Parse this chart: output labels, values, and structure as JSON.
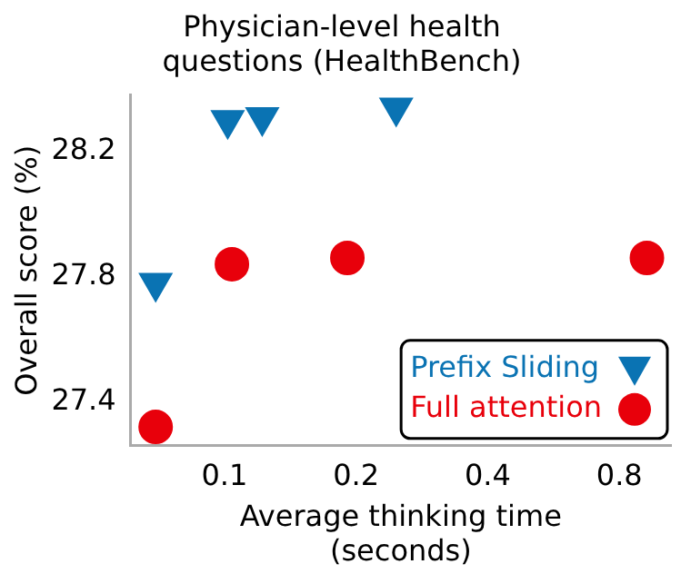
{
  "chart_data": {
    "type": "scatter",
    "title": "Physician-level health\nquestions (HealthBench)",
    "xlabel": "Average thinking time\n(seconds)",
    "ylabel": "Overall score (%)",
    "log": "x",
    "xlim": [
      0.061,
      1.05
    ],
    "xticks": [
      0.1,
      0.2,
      0.4,
      0.8
    ],
    "ylim": [
      27.26,
      28.38
    ],
    "yticks": [
      27.4,
      27.8,
      28.2
    ],
    "grid": false,
    "legend": "bottom right",
    "series": [
      {
        "name": "Prefix Sliding",
        "color": "#0a73b3",
        "marker": "triangle",
        "x": [
          0.0696,
          0.1017,
          0.122,
          0.247
        ],
        "values": [
          27.78,
          28.3,
          28.31,
          28.34
        ]
      },
      {
        "name": "Full attention",
        "color": "#e8000b",
        "marker": "circle",
        "x": [
          0.0696,
          0.104,
          0.191,
          0.925
        ],
        "values": [
          27.32,
          27.84,
          27.86,
          27.86
        ]
      }
    ]
  }
}
